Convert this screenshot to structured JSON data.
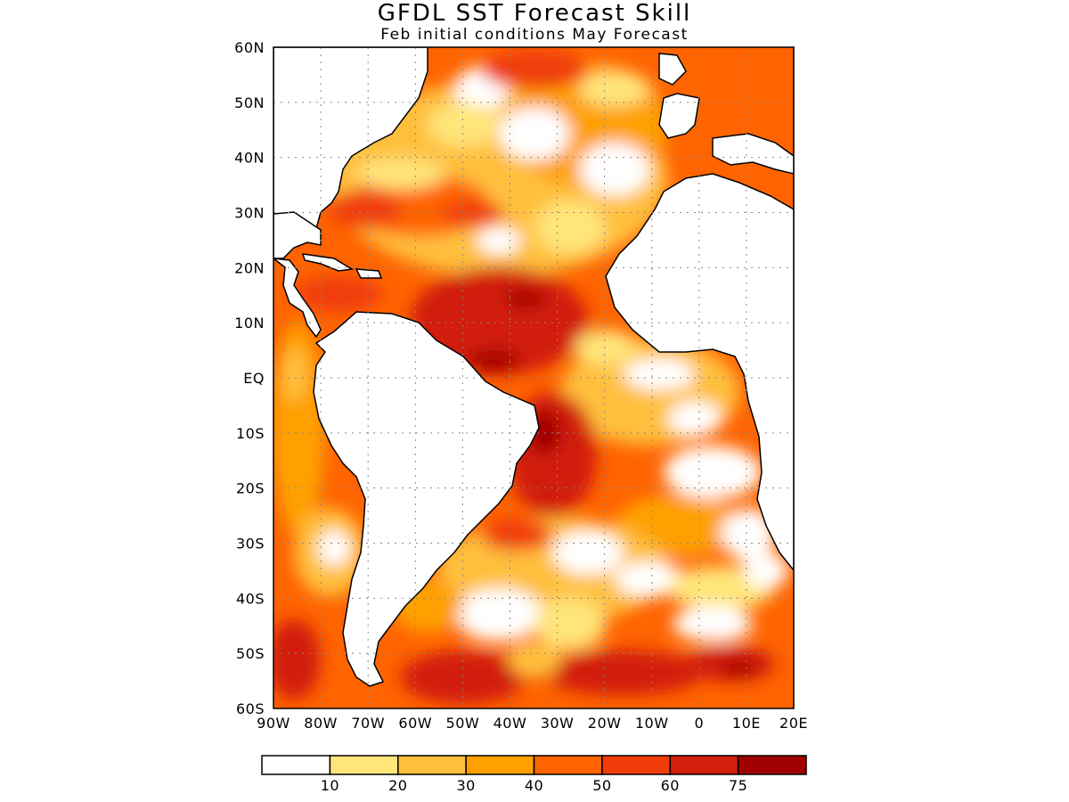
{
  "title": "GFDL SST Forecast Skill",
  "subtitle": "Feb initial conditions  May Forecast",
  "lat_ticks": [
    "60N",
    "50N",
    "40N",
    "30N",
    "20N",
    "10N",
    "EQ",
    "10S",
    "20S",
    "30S",
    "40S",
    "50S",
    "60S"
  ],
  "lon_ticks": [
    "90W",
    "80W",
    "70W",
    "60W",
    "50W",
    "40W",
    "30W",
    "20W",
    "10W",
    "0",
    "10E",
    "20E"
  ],
  "extent": {
    "lon_min": -90,
    "lon_max": 20,
    "lat_min": -60,
    "lat_max": 60
  },
  "colorbar": {
    "labels": [
      "10",
      "20",
      "30",
      "40",
      "50",
      "60",
      "75"
    ],
    "colors": [
      "#ffffff",
      "#ffe57a",
      "#ffbf3c",
      "#ffa000",
      "#ff6400",
      "#f03c0a",
      "#d21e0a",
      "#a00000"
    ]
  }
}
